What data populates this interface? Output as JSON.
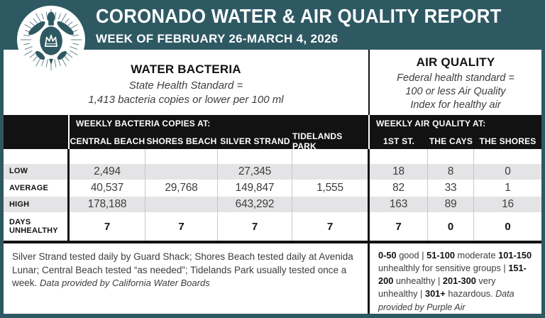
{
  "header": {
    "title": "CORONADO WATER & AIR QUALITY REPORT",
    "subtitle": "WEEK OF FEBRUARY 26-MARCH 4, 2026"
  },
  "logo": {
    "icon": "sea-turtle-with-crown"
  },
  "water_section": {
    "title": "WATER BACTERIA",
    "standard_line1": "State Health Standard  =",
    "standard_line2": "1,413 bacteria copies or lower per 100 ml"
  },
  "air_section": {
    "title": "AIR QUALITY",
    "standard_line1": "Federal health standard =",
    "standard_line2": "100 or less Air Quality",
    "standard_line3": "Index for healthy air"
  },
  "table": {
    "water_group_header": "WEEKLY BACTERIA COPIES AT:",
    "air_group_header": "WEEKLY AIR QUALITY AT:",
    "columns": [
      "CENTRAL BEACH",
      "SHORES BEACH",
      "SILVER STRAND",
      "TIDELANDS PARK",
      "1ST ST.",
      "THE CAYS",
      "THE SHORES"
    ],
    "rows": [
      {
        "label": "LOW",
        "values": [
          "2,494",
          "",
          "27,345",
          "",
          "18",
          "8",
          "0"
        ]
      },
      {
        "label": "AVERAGE",
        "values": [
          "40,537",
          "29,768",
          "149,847",
          "1,555",
          "82",
          "33",
          "1"
        ]
      },
      {
        "label": "HIGH",
        "values": [
          "178,188",
          "",
          "643,292",
          "",
          "163",
          "89",
          "16"
        ]
      },
      {
        "label": "DAYS UNHEALTHY",
        "values": [
          "7",
          "7",
          "7",
          "7",
          "7",
          "0",
          "0"
        ]
      }
    ]
  },
  "footer": {
    "water_note": "Silver Strand tested daily by Guard Shack; Shores Beach tested daily at Avenida Lunar; Central Beach tested “as needed”; Tidelands Park usually tested once a week.",
    "water_source": "Data provided by California Water Boards",
    "air_scale": [
      {
        "range": "0-50",
        "label": "good |"
      },
      {
        "range": "51-100",
        "label": "moderate"
      },
      {
        "range": "101-150",
        "label": "unhealthly for sensitive groups |"
      },
      {
        "range": "151-200",
        "label": "unhealthy |"
      },
      {
        "range": "201-300",
        "label": "very unhealthy |"
      },
      {
        "range": "301+",
        "label": "hazardous."
      }
    ],
    "air_source": "Data provided by Purple Air"
  },
  "colors": {
    "teal": "#2E5963",
    "header_black": "#121212",
    "row_stripe": "#E4E4E6"
  }
}
